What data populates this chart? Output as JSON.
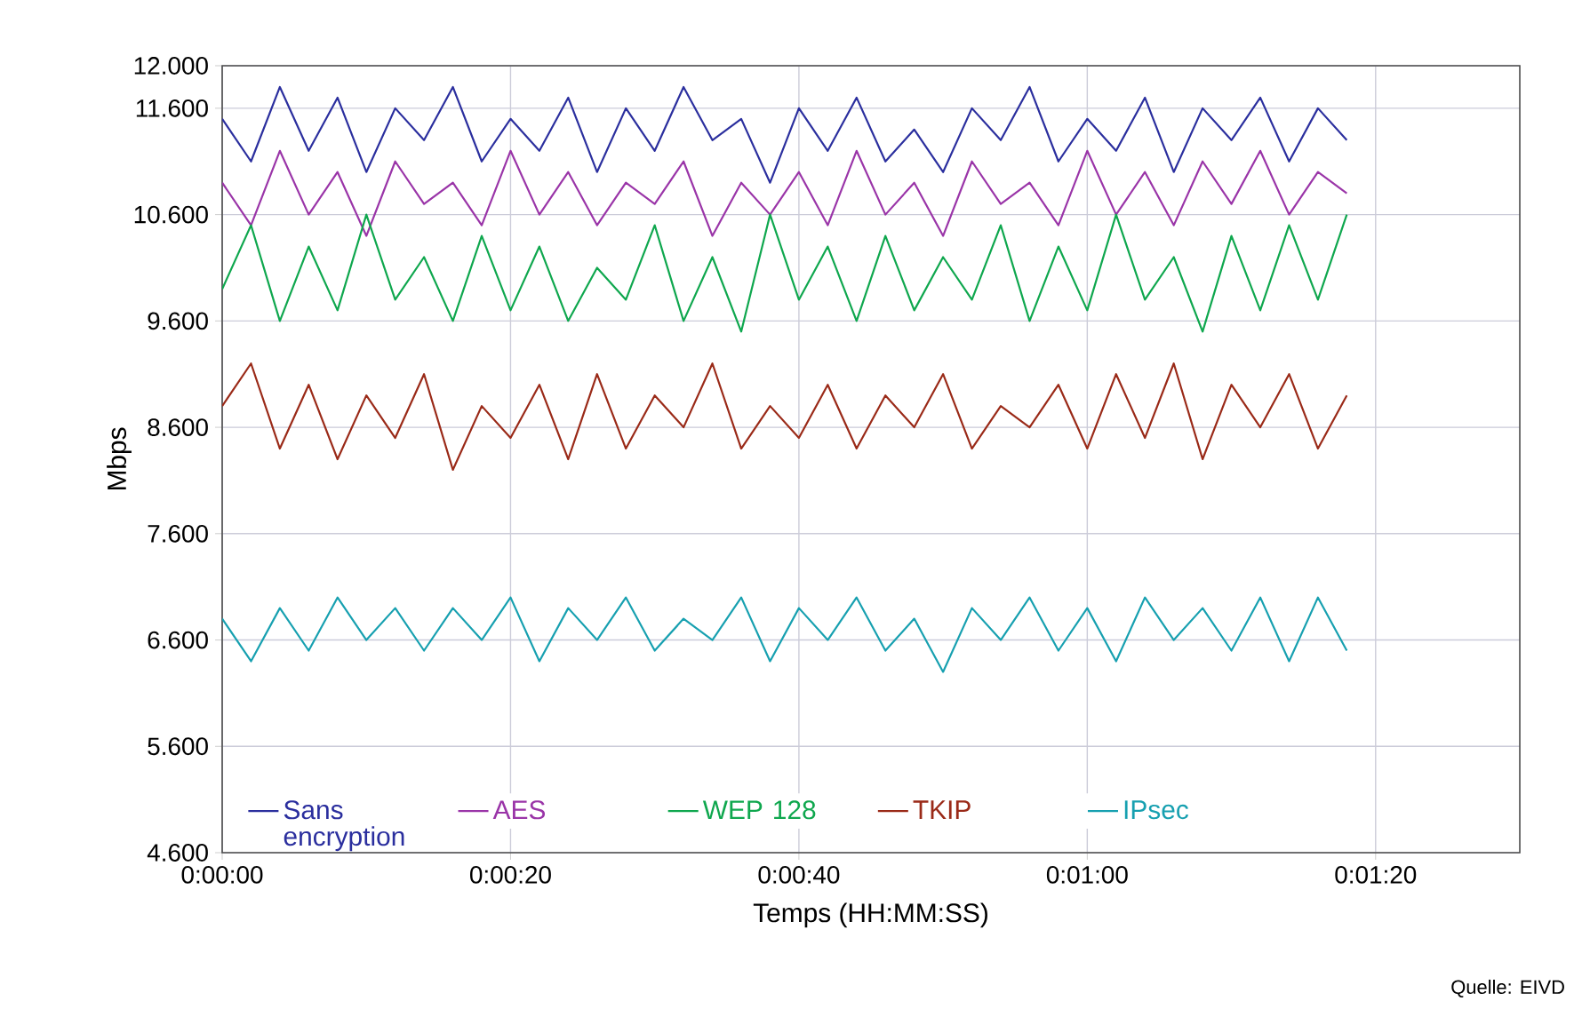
{
  "chart_data": {
    "type": "line",
    "xlabel": "Temps (HH:MM:SS)",
    "ylabel": "Mbps",
    "annotations": [
      "Quelle: EIVD"
    ],
    "x": [
      0,
      2,
      4,
      6,
      8,
      10,
      12,
      14,
      16,
      18,
      20,
      22,
      24,
      26,
      28,
      30,
      32,
      34,
      36,
      38,
      40,
      42,
      44,
      46,
      48,
      50,
      52,
      54,
      56,
      58,
      60,
      62,
      64,
      66,
      68,
      70,
      72,
      74,
      76,
      78
    ],
    "xlim": [
      0,
      90
    ],
    "xticks": [
      {
        "value": 0,
        "label": "0:00:00"
      },
      {
        "value": 20,
        "label": "0:00:20"
      },
      {
        "value": 40,
        "label": "0:00:40"
      },
      {
        "value": 60,
        "label": "0:01:00"
      },
      {
        "value": 80,
        "label": "0:01:20"
      }
    ],
    "ylim": [
      4.6,
      12
    ],
    "yticks": [
      {
        "value": 4.6,
        "label": "4.600"
      },
      {
        "value": 5.6,
        "label": "5.600"
      },
      {
        "value": 6.6,
        "label": "6.600"
      },
      {
        "value": 7.6,
        "label": "7.600"
      },
      {
        "value": 8.6,
        "label": "8.600"
      },
      {
        "value": 9.6,
        "label": "9.600"
      },
      {
        "value": 10.6,
        "label": "10.600"
      },
      {
        "value": 11.6,
        "label": "11.600"
      },
      {
        "value": 12,
        "label": "12.000"
      }
    ],
    "grid": true,
    "legend": "bottom",
    "marker": "none",
    "line_style": "solid",
    "series": [
      {
        "name": "Sans encryption",
        "color": "#2b2f9e",
        "values": [
          11.5,
          11.1,
          11.8,
          11.2,
          11.7,
          11.0,
          11.6,
          11.3,
          11.8,
          11.1,
          11.5,
          11.2,
          11.7,
          11.0,
          11.6,
          11.2,
          11.8,
          11.3,
          11.5,
          10.9,
          11.6,
          11.2,
          11.7,
          11.1,
          11.4,
          11.0,
          11.6,
          11.3,
          11.8,
          11.1,
          11.5,
          11.2,
          11.7,
          11.0,
          11.6,
          11.3,
          11.7,
          11.1,
          11.6,
          11.3
        ]
      },
      {
        "name": "AES",
        "color": "#9a35a8",
        "values": [
          10.9,
          10.5,
          11.2,
          10.6,
          11.0,
          10.4,
          11.1,
          10.7,
          10.9,
          10.5,
          11.2,
          10.6,
          11.0,
          10.5,
          10.9,
          10.7,
          11.1,
          10.4,
          10.9,
          10.6,
          11.0,
          10.5,
          11.2,
          10.6,
          10.9,
          10.4,
          11.1,
          10.7,
          10.9,
          10.5,
          11.2,
          10.6,
          11.0,
          10.5,
          11.1,
          10.7,
          11.2,
          10.6,
          11.0,
          10.8
        ]
      },
      {
        "name": "WEP 128",
        "color": "#0fa74e",
        "values": [
          9.9,
          10.5,
          9.6,
          10.3,
          9.7,
          10.6,
          9.8,
          10.2,
          9.6,
          10.4,
          9.7,
          10.3,
          9.6,
          10.1,
          9.8,
          10.5,
          9.6,
          10.2,
          9.5,
          10.6,
          9.8,
          10.3,
          9.6,
          10.4,
          9.7,
          10.2,
          9.8,
          10.5,
          9.6,
          10.3,
          9.7,
          10.6,
          9.8,
          10.2,
          9.5,
          10.4,
          9.7,
          10.5,
          9.8,
          10.6
        ]
      },
      {
        "name": "TKIP",
        "color": "#9a2a18",
        "values": [
          8.8,
          9.2,
          8.4,
          9.0,
          8.3,
          8.9,
          8.5,
          9.1,
          8.2,
          8.8,
          8.5,
          9.0,
          8.3,
          9.1,
          8.4,
          8.9,
          8.6,
          9.2,
          8.4,
          8.8,
          8.5,
          9.0,
          8.4,
          8.9,
          8.6,
          9.1,
          8.4,
          8.8,
          8.6,
          9.0,
          8.4,
          9.1,
          8.5,
          9.2,
          8.3,
          9.0,
          8.6,
          9.1,
          8.4,
          8.9
        ]
      },
      {
        "name": "IPsec",
        "color": "#17a0b0",
        "values": [
          6.8,
          6.4,
          6.9,
          6.5,
          7.0,
          6.6,
          6.9,
          6.5,
          6.9,
          6.6,
          7.0,
          6.4,
          6.9,
          6.6,
          7.0,
          6.5,
          6.8,
          6.6,
          7.0,
          6.4,
          6.9,
          6.6,
          7.0,
          6.5,
          6.8,
          6.3,
          6.9,
          6.6,
          7.0,
          6.5,
          6.9,
          6.4,
          7.0,
          6.6,
          6.9,
          6.5,
          7.0,
          6.4,
          7.0,
          6.5
        ]
      }
    ]
  }
}
